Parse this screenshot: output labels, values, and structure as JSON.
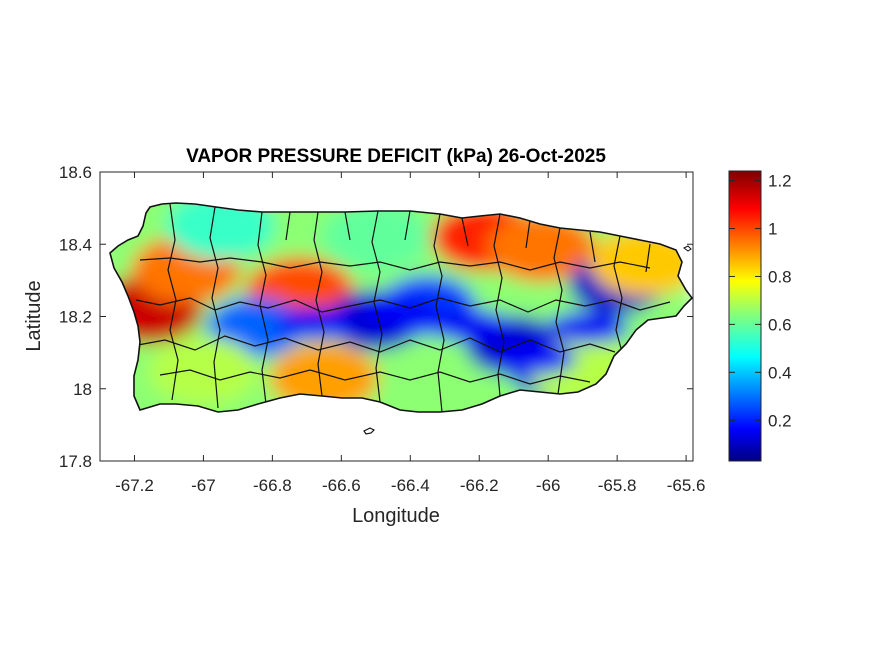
{
  "chart_data": {
    "type": "heatmap",
    "title": "VAPOR PRESSURE DEFICIT (kPa) 26-Oct-2025",
    "xlabel": "Longitude",
    "ylabel": "Latitude",
    "xlim": [
      -67.3,
      -65.58
    ],
    "ylim": [
      17.8,
      18.6
    ],
    "x_ticks": [
      -67.2,
      -67,
      -66.8,
      -66.6,
      -66.4,
      -66.2,
      -66,
      -65.8,
      -65.6
    ],
    "x_tick_labels": [
      "-67.2",
      "-67",
      "-66.8",
      "-66.6",
      "-66.4",
      "-66.2",
      "-66",
      "-65.8",
      "-65.6"
    ],
    "y_ticks": [
      17.8,
      18,
      18.2,
      18.4,
      18.6
    ],
    "y_tick_labels": [
      "17.8",
      "18",
      "18.2",
      "18.4",
      "18.6"
    ],
    "colorbar": {
      "colormap": "jet",
      "range": [
        0.03,
        1.24
      ],
      "ticks": [
        0.2,
        0.4,
        0.6,
        0.8,
        1,
        1.2
      ],
      "tick_labels": [
        "0.2",
        "0.4",
        "0.6",
        "0.8",
        "1",
        "1.2"
      ]
    },
    "field_summary": [
      {
        "lon": -67.16,
        "lat": 18.22,
        "vpd": 1.15
      },
      {
        "lon": -67.05,
        "lat": 18.33,
        "vpd": 0.95
      },
      {
        "lon": -66.72,
        "lat": 18.27,
        "vpd": 1.0
      },
      {
        "lon": -66.18,
        "lat": 18.42,
        "vpd": 1.05
      },
      {
        "lon": -66.02,
        "lat": 18.39,
        "vpd": 0.95
      },
      {
        "lon": -66.85,
        "lat": 18.17,
        "vpd": 0.3
      },
      {
        "lon": -66.5,
        "lat": 18.19,
        "vpd": 0.12
      },
      {
        "lon": -66.35,
        "lat": 18.23,
        "vpd": 0.25
      },
      {
        "lon": -66.1,
        "lat": 18.12,
        "vpd": 0.12
      },
      {
        "lon": -65.97,
        "lat": 18.05,
        "vpd": 0.15
      },
      {
        "lon": -65.8,
        "lat": 18.29,
        "vpd": 0.12
      },
      {
        "lon": -66.65,
        "lat": 18.03,
        "vpd": 0.9
      },
      {
        "lon": -67.0,
        "lat": 18.05,
        "vpd": 0.7
      },
      {
        "lon": -65.72,
        "lat": 18.35,
        "vpd": 0.85
      },
      {
        "lon": -65.9,
        "lat": 18.05,
        "vpd": 0.7
      },
      {
        "lon": -66.95,
        "lat": 18.45,
        "vpd": 0.55
      },
      {
        "lon": -66.5,
        "lat": 18.42,
        "vpd": 0.6
      }
    ]
  }
}
